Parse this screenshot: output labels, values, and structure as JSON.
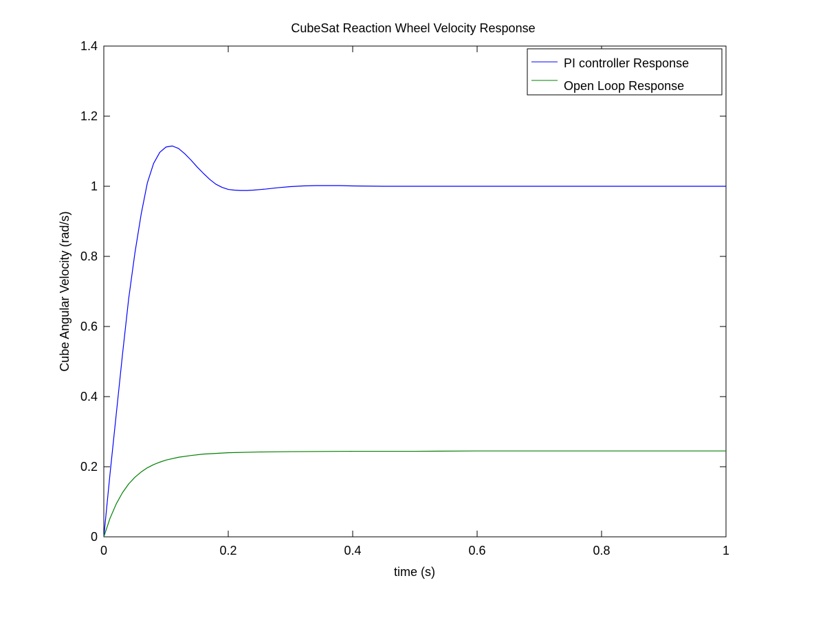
{
  "chart_data": {
    "type": "line",
    "title": "CubeSat Reaction Wheel Velocity Response",
    "xlabel": "time (s)",
    "ylabel": "Cube Angular Velocity (rad/s)",
    "xlim": [
      0,
      1
    ],
    "ylim": [
      0,
      1.4
    ],
    "xticks": [
      0,
      0.2,
      0.4,
      0.6,
      0.8,
      1
    ],
    "yticks": [
      0,
      0.2,
      0.4,
      0.6,
      0.8,
      1,
      1.2,
      1.4
    ],
    "xtick_labels": [
      "0",
      "0.2",
      "0.4",
      "0.6",
      "0.8",
      "1"
    ],
    "ytick_labels": [
      "0",
      "0.2",
      "0.4",
      "0.6",
      "0.8",
      "1",
      "1.2",
      "1.4"
    ],
    "grid": false,
    "legend_position": "top-right",
    "series": [
      {
        "name": "PI controller Response",
        "color": "#0000ff",
        "x": [
          0,
          0.01,
          0.02,
          0.03,
          0.04,
          0.05,
          0.06,
          0.07,
          0.08,
          0.09,
          0.1,
          0.11,
          0.12,
          0.13,
          0.14,
          0.15,
          0.16,
          0.17,
          0.18,
          0.19,
          0.2,
          0.21,
          0.22,
          0.23,
          0.24,
          0.26,
          0.28,
          0.3,
          0.32,
          0.34,
          0.36,
          0.38,
          0.4,
          0.45,
          0.5,
          0.6,
          0.7,
          0.8,
          0.9,
          1.0
        ],
        "y": [
          0,
          0.18,
          0.35,
          0.52,
          0.68,
          0.81,
          0.92,
          1.01,
          1.065,
          1.097,
          1.112,
          1.115,
          1.108,
          1.093,
          1.075,
          1.055,
          1.037,
          1.02,
          1.006,
          0.997,
          0.991,
          0.989,
          0.988,
          0.988,
          0.989,
          0.992,
          0.996,
          0.999,
          1.001,
          1.002,
          1.002,
          1.002,
          1.001,
          1.0,
          1.0,
          1.0,
          1.0,
          1.0,
          1.0,
          1.0
        ]
      },
      {
        "name": "Open Loop Response",
        "color": "#007f00",
        "x": [
          0,
          0.01,
          0.02,
          0.03,
          0.04,
          0.05,
          0.06,
          0.07,
          0.08,
          0.09,
          0.1,
          0.12,
          0.14,
          0.16,
          0.18,
          0.2,
          0.25,
          0.3,
          0.4,
          0.5,
          0.6,
          0.7,
          0.8,
          0.9,
          1.0
        ],
        "y": [
          0,
          0.053,
          0.094,
          0.126,
          0.151,
          0.17,
          0.185,
          0.197,
          0.206,
          0.213,
          0.219,
          0.227,
          0.232,
          0.236,
          0.238,
          0.24,
          0.242,
          0.243,
          0.244,
          0.244,
          0.245,
          0.245,
          0.245,
          0.245,
          0.245
        ]
      }
    ]
  }
}
